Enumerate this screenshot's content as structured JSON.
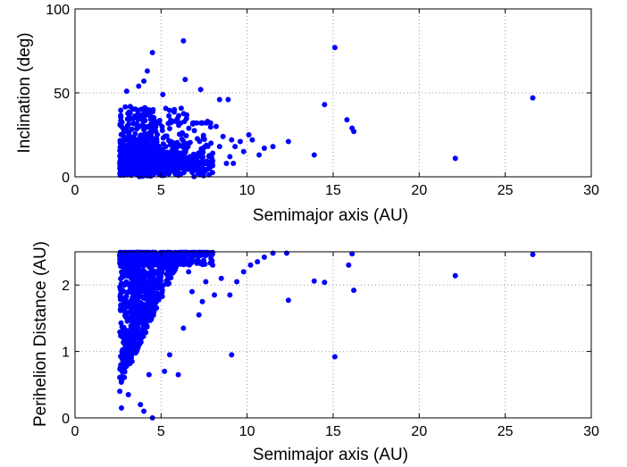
{
  "chart_data": [
    {
      "type": "scatter",
      "title": "",
      "xlabel": "Semimajor axis (AU)",
      "ylabel": "Inclination (deg)",
      "xlim": [
        0,
        30
      ],
      "ylim": [
        0,
        100
      ],
      "xticks": [
        0,
        5,
        10,
        15,
        20,
        25,
        30
      ],
      "yticks": [
        0,
        50,
        100
      ],
      "grid": true,
      "marker_color": "#0000ff",
      "cluster": {
        "x_range": [
          2.6,
          8.0
        ],
        "y_range": [
          0,
          45
        ],
        "count": 1500
      },
      "points": [
        {
          "x": 4.5,
          "y": 74
        },
        {
          "x": 6.3,
          "y": 81
        },
        {
          "x": 6.4,
          "y": 58
        },
        {
          "x": 4.2,
          "y": 63
        },
        {
          "x": 4.0,
          "y": 57
        },
        {
          "x": 3.7,
          "y": 54
        },
        {
          "x": 3.0,
          "y": 51
        },
        {
          "x": 5.1,
          "y": 49
        },
        {
          "x": 7.3,
          "y": 52
        },
        {
          "x": 8.4,
          "y": 46
        },
        {
          "x": 8.9,
          "y": 46
        },
        {
          "x": 7.7,
          "y": 33
        },
        {
          "x": 8.2,
          "y": 30
        },
        {
          "x": 8.6,
          "y": 24
        },
        {
          "x": 9.1,
          "y": 22
        },
        {
          "x": 9.3,
          "y": 18
        },
        {
          "x": 9.6,
          "y": 21
        },
        {
          "x": 10.1,
          "y": 25
        },
        {
          "x": 10.3,
          "y": 22
        },
        {
          "x": 11.0,
          "y": 17
        },
        {
          "x": 11.5,
          "y": 18
        },
        {
          "x": 12.4,
          "y": 21
        },
        {
          "x": 13.9,
          "y": 13
        },
        {
          "x": 14.5,
          "y": 43
        },
        {
          "x": 15.1,
          "y": 77
        },
        {
          "x": 15.8,
          "y": 34
        },
        {
          "x": 16.1,
          "y": 29
        },
        {
          "x": 16.2,
          "y": 27
        },
        {
          "x": 22.1,
          "y": 11
        },
        {
          "x": 26.6,
          "y": 47
        },
        {
          "x": 9.0,
          "y": 12
        },
        {
          "x": 9.8,
          "y": 15
        },
        {
          "x": 10.7,
          "y": 13
        },
        {
          "x": 8.8,
          "y": 8
        },
        {
          "x": 9.2,
          "y": 8
        },
        {
          "x": 8.0,
          "y": 14
        },
        {
          "x": 7.9,
          "y": 20
        },
        {
          "x": 8.4,
          "y": 18
        }
      ]
    },
    {
      "type": "scatter",
      "title": "",
      "xlabel": "Semimajor axis (AU)",
      "ylabel": "Perihelion Distance (AU)",
      "xlim": [
        0,
        30
      ],
      "ylim": [
        0,
        2.5
      ],
      "xticks": [
        0,
        5,
        10,
        15,
        20,
        25,
        30
      ],
      "yticks": [
        0,
        1,
        2
      ],
      "grid": true,
      "marker_color": "#0000ff",
      "cluster": {
        "x_range": [
          2.6,
          8.0
        ],
        "q_max": 2.5,
        "count": 1500
      },
      "points": [
        {
          "x": 2.7,
          "y": 0.15
        },
        {
          "x": 2.6,
          "y": 0.4
        },
        {
          "x": 2.7,
          "y": 0.55
        },
        {
          "x": 3.8,
          "y": 0.2
        },
        {
          "x": 4.0,
          "y": 0.1
        },
        {
          "x": 4.5,
          "y": 0.0
        },
        {
          "x": 3.1,
          "y": 0.35
        },
        {
          "x": 4.3,
          "y": 0.65
        },
        {
          "x": 5.2,
          "y": 0.7
        },
        {
          "x": 6.0,
          "y": 0.65
        },
        {
          "x": 5.5,
          "y": 0.95
        },
        {
          "x": 6.3,
          "y": 1.35
        },
        {
          "x": 7.2,
          "y": 1.55
        },
        {
          "x": 7.4,
          "y": 1.75
        },
        {
          "x": 8.1,
          "y": 1.85
        },
        {
          "x": 9.0,
          "y": 1.85
        },
        {
          "x": 9.1,
          "y": 0.95
        },
        {
          "x": 9.4,
          "y": 2.05
        },
        {
          "x": 9.8,
          "y": 2.2
        },
        {
          "x": 10.2,
          "y": 2.3
        },
        {
          "x": 10.6,
          "y": 2.35
        },
        {
          "x": 11.0,
          "y": 2.42
        },
        {
          "x": 11.5,
          "y": 2.48
        },
        {
          "x": 12.3,
          "y": 2.48
        },
        {
          "x": 12.4,
          "y": 1.77
        },
        {
          "x": 13.9,
          "y": 2.06
        },
        {
          "x": 14.5,
          "y": 2.04
        },
        {
          "x": 15.1,
          "y": 0.92
        },
        {
          "x": 15.9,
          "y": 2.3
        },
        {
          "x": 16.1,
          "y": 2.47
        },
        {
          "x": 16.2,
          "y": 1.92
        },
        {
          "x": 22.1,
          "y": 2.14
        },
        {
          "x": 26.6,
          "y": 2.46
        },
        {
          "x": 8.5,
          "y": 2.1
        },
        {
          "x": 8.0,
          "y": 2.3
        },
        {
          "x": 7.6,
          "y": 2.05
        },
        {
          "x": 6.8,
          "y": 1.9
        },
        {
          "x": 6.6,
          "y": 2.2
        }
      ]
    }
  ]
}
